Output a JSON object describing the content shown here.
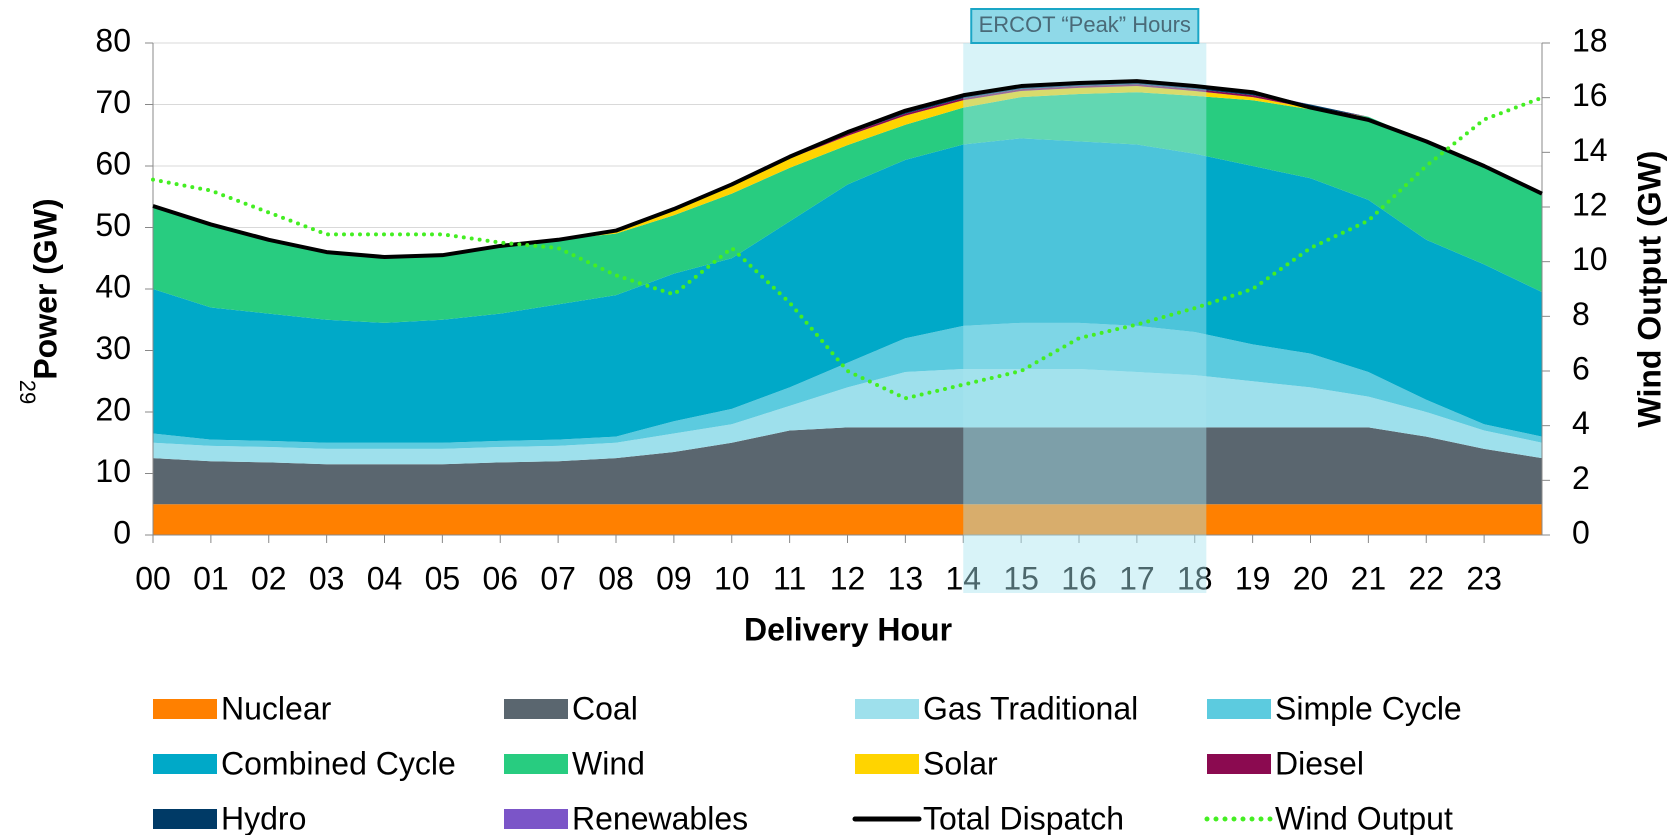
{
  "chart_data": {
    "type": "area",
    "x_label": "Delivery Hour",
    "y_label": "Power (GW)",
    "y2_label": "Wind Output (GW)",
    "side_note": "29",
    "highlight": {
      "label": "ERCOT “Peak” Hours",
      "x": [
        14,
        18.2
      ]
    },
    "grid": true,
    "xlim": [
      0,
      24
    ],
    "xticks": [
      {
        "value": 0,
        "label": "00"
      },
      {
        "value": 1,
        "label": "01"
      },
      {
        "value": 2,
        "label": "02"
      },
      {
        "value": 3,
        "label": "03"
      },
      {
        "value": 4,
        "label": "04"
      },
      {
        "value": 5,
        "label": "05"
      },
      {
        "value": 6,
        "label": "06"
      },
      {
        "value": 7,
        "label": "07"
      },
      {
        "value": 8,
        "label": "08"
      },
      {
        "value": 9,
        "label": "09"
      },
      10,
      11,
      12,
      13,
      14,
      15,
      16,
      17,
      18,
      19,
      20,
      21,
      22,
      23
    ],
    "ylim": [
      0,
      80
    ],
    "yticks": [
      0,
      10,
      20,
      30,
      40,
      50,
      60,
      70,
      80
    ],
    "y2lim": [
      0,
      18
    ],
    "y2ticks": [
      0,
      2,
      4,
      6,
      8,
      10,
      12,
      14,
      16,
      18
    ],
    "x": [
      0,
      1,
      2,
      3,
      4,
      5,
      6,
      7,
      8,
      9,
      10,
      11,
      12,
      13,
      14,
      15,
      16,
      17,
      18,
      19,
      20,
      21,
      22,
      23,
      24
    ],
    "series": [
      {
        "name": "Nuclear",
        "color": "#ff8000",
        "style": "area",
        "values": [
          5,
          5,
          5,
          5,
          5,
          5,
          5,
          5,
          5,
          5,
          5,
          5,
          5,
          5,
          5,
          5,
          5,
          5,
          5,
          5,
          5,
          5,
          5,
          5,
          5
        ]
      },
      {
        "name": "Coal",
        "color": "#5a666f",
        "style": "area",
        "values": [
          7.5,
          7,
          6.8,
          6.5,
          6.5,
          6.5,
          6.8,
          7,
          7.5,
          8.5,
          10,
          12,
          12.5,
          12.5,
          12.5,
          12.5,
          12.5,
          12.5,
          12.5,
          12.5,
          12.5,
          12.5,
          11,
          9,
          7.5
        ]
      },
      {
        "name": "Gas Traditional",
        "color": "#9ee0ec",
        "style": "area",
        "values": [
          2.5,
          2.5,
          2.5,
          2.5,
          2.5,
          2.5,
          2.5,
          2.5,
          2.5,
          3,
          3,
          4,
          6.5,
          9,
          9.5,
          9.5,
          9.5,
          9,
          8.5,
          7.5,
          6.5,
          5,
          4,
          3,
          2.5
        ]
      },
      {
        "name": "Simple Cycle",
        "color": "#5ccbdf",
        "style": "area",
        "values": [
          1.5,
          1,
          1,
          1,
          1,
          1,
          1,
          1,
          1,
          2,
          2.5,
          3,
          4,
          5.5,
          7,
          7.5,
          7.5,
          7.5,
          7,
          6,
          5.5,
          4,
          2,
          1,
          1
        ]
      },
      {
        "name": "Combined Cycle",
        "color": "#00a9c8",
        "style": "area",
        "values": [
          23.5,
          21.5,
          20.7,
          20,
          19.5,
          20,
          20.7,
          22,
          23,
          24,
          24.5,
          27,
          29,
          29,
          29.5,
          30,
          29.5,
          29.5,
          29,
          29,
          28.5,
          28,
          26,
          26,
          23.5
        ]
      },
      {
        "name": "Wind",
        "color": "#28cc80",
        "style": "area",
        "values": [
          13.5,
          13.5,
          12,
          11,
          10.7,
          10.5,
          11,
          10.5,
          10,
          9.5,
          10.5,
          8.7,
          6.4,
          5.7,
          6,
          6.7,
          7.7,
          8.5,
          9.4,
          10.7,
          11.2,
          13.5,
          16,
          16,
          16
        ]
      },
      {
        "name": "Solar",
        "color": "#ffd400",
        "style": "area",
        "values": [
          0,
          0,
          0,
          0,
          0,
          0,
          0,
          0,
          0.5,
          1,
          1.5,
          1.5,
          1.5,
          1.5,
          1.2,
          1,
          1,
          1,
          0.8,
          0.5,
          0.2,
          0,
          0,
          0,
          0
        ]
      },
      {
        "name": "Diesel",
        "color": "#8b0a50",
        "style": "area",
        "values": [
          0,
          0,
          0,
          0,
          0,
          0,
          0,
          0,
          0,
          0,
          0,
          0.3,
          0.3,
          0.3,
          0.3,
          0.3,
          0.3,
          0.3,
          0.3,
          0.3,
          0.3,
          0,
          0,
          0,
          0
        ]
      },
      {
        "name": "Hydro",
        "color": "#003a66",
        "style": "area",
        "values": [
          0,
          0,
          0,
          0,
          0,
          0,
          0,
          0,
          0,
          0,
          0,
          0,
          0.3,
          0.3,
          0.3,
          0.3,
          0.3,
          0.3,
          0.3,
          0.3,
          0.3,
          0,
          0,
          0,
          0
        ]
      },
      {
        "name": "Renewables",
        "color": "#7b55c8",
        "style": "area",
        "values": [
          0,
          0,
          0,
          0,
          0,
          0,
          0,
          0,
          0,
          0,
          0,
          0,
          0,
          0.2,
          0.2,
          0.2,
          0.2,
          0.2,
          0.2,
          0.2,
          0,
          0,
          0,
          0,
          0
        ]
      },
      {
        "name": "Total Dispatch",
        "color": "#000000",
        "style": "line",
        "values": [
          53.5,
          50.5,
          48,
          46,
          45.2,
          45.5,
          47,
          48,
          49.5,
          53,
          57,
          61.5,
          65.5,
          69,
          71.5,
          73,
          73.5,
          73.8,
          73,
          72,
          69.5,
          67.5,
          64,
          60,
          55.5
        ]
      },
      {
        "name": "Wind Output",
        "color": "#44ee22",
        "style": "dotted",
        "axis": "y2",
        "values": [
          13,
          12.6,
          11.8,
          11,
          11,
          11,
          10.7,
          10.5,
          9.5,
          8.8,
          10.5,
          8.5,
          6,
          5,
          5.5,
          6,
          7.2,
          7.7,
          8.3,
          9,
          10.5,
          11.5,
          13.5,
          15.2,
          16
        ]
      }
    ]
  }
}
